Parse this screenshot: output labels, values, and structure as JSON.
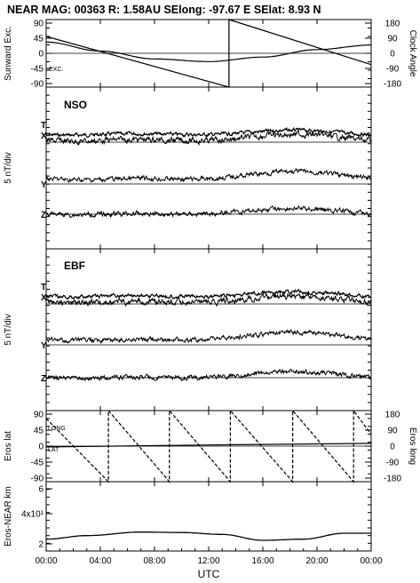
{
  "header": {
    "title": "NEAR MAG: 00363  R: 1.58AU  SElong:  -97.67 E  SElat:    8.93 N"
  },
  "chart_data": {
    "type": "line",
    "xlabel": "UTC",
    "x_ticks": [
      "00:00",
      "04:00",
      "08:00",
      "12:00",
      "16:00",
      "20:00",
      "00:00"
    ],
    "panels": [
      {
        "ylabel_left": "Sunward Exc.",
        "ylabel_right": "Clock Angle",
        "left_ticks": [
          "90",
          "45",
          "0",
          "-45",
          "-90"
        ],
        "right_ticks": [
          "180",
          "90",
          "0",
          "-90",
          "-180"
        ],
        "left_ylim": [
          -90,
          90
        ],
        "right_ylim": [
          -180,
          180
        ],
        "curve_labels": [
          "EXC."
        ],
        "series": [
          {
            "name": "EXC.",
            "x_hours": [
              0,
              4,
              8,
              12,
              16,
              20,
              24
            ],
            "values": [
              30,
              6,
              -15,
              -22,
              -10,
              10,
              22
            ]
          },
          {
            "name": "Clock Angle",
            "x_hours": [
              0,
              13.5,
              13.5,
              24
            ],
            "values": [
              90,
              -180,
              180,
              -60
            ]
          }
        ]
      },
      {
        "label": "NSO",
        "ylabel_left": "5 nT/div",
        "curve_labels": [
          "T",
          "X",
          "Y",
          "Z"
        ]
      },
      {
        "label": "EBF",
        "ylabel_left": "5 nT/div",
        "curve_labels": [
          "T",
          "X",
          "Y",
          "Z"
        ]
      },
      {
        "ylabel_left": "Eros lat",
        "ylabel_right": "Eros long",
        "left_ticks": [
          "90",
          "45",
          "0",
          "-45",
          "-90"
        ],
        "right_ticks": [
          "180",
          "90",
          "0",
          "-90",
          "-180"
        ],
        "left_ylim": [
          -90,
          90
        ],
        "right_ylim": [
          -180,
          180
        ],
        "curve_labels": [
          "LONG",
          "LAT"
        ],
        "series": [
          {
            "name": "LAT",
            "x_hours": [
              0,
              12,
              24
            ],
            "values": [
              -2,
              3,
              7
            ]
          },
          {
            "name": "LONG",
            "x_hours": [
              0,
              4.6,
              4.6,
              9.1,
              9.1,
              13.6,
              13.6,
              18.2,
              18.2,
              22.7,
              22.7,
              24
            ],
            "values": [
              140,
              -180,
              180,
              -180,
              180,
              -180,
              180,
              -180,
              180,
              -180,
              180,
              60
            ]
          }
        ]
      },
      {
        "ylabel_left": "Eros-NEAR km",
        "left_ticks": [
          "6",
          "4x10¹",
          "2"
        ],
        "left_ylim": [
          2,
          6
        ],
        "series": [
          {
            "name": "",
            "x_hours": [
              0,
              3,
              7,
              10,
              13,
              16,
              19,
              22,
              24
            ],
            "values": [
              1.6,
              1.75,
              1.9,
              1.88,
              1.8,
              1.55,
              1.6,
              1.85,
              1.85
            ]
          }
        ]
      }
    ]
  }
}
